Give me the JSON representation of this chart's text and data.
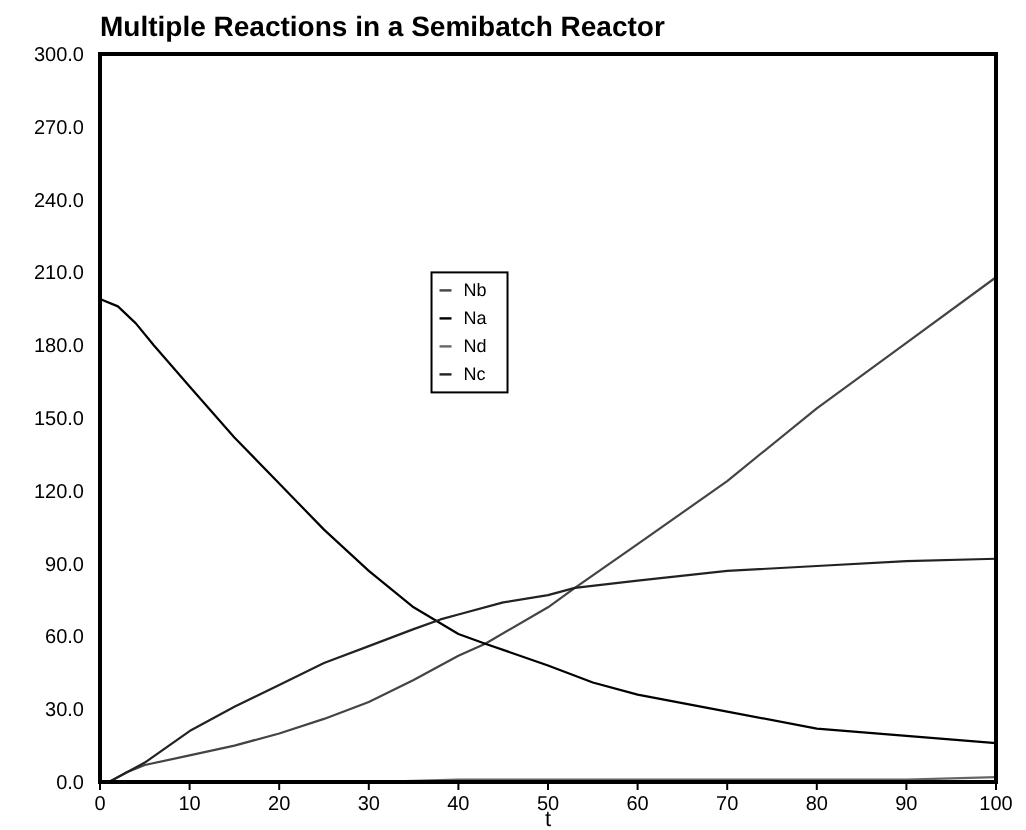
{
  "chart_data": {
    "type": "line",
    "title": "Multiple Reactions in a Semibatch Reactor",
    "xlabel": "t",
    "xlim": [
      0,
      100
    ],
    "xticks": [
      0,
      10,
      20,
      30,
      40,
      50,
      60,
      70,
      80,
      90,
      100
    ],
    "ylim": [
      0,
      300
    ],
    "yticks": [
      {
        "value": 0,
        "label": "0.0"
      },
      {
        "value": 30,
        "label": "30.0"
      },
      {
        "value": 60,
        "label": "60.0"
      },
      {
        "value": 90,
        "label": "90.0"
      },
      {
        "value": 120,
        "label": "120.0"
      },
      {
        "value": 150,
        "label": "150.0"
      },
      {
        "value": 180,
        "label": "180.0"
      },
      {
        "value": 210,
        "label": "210.0"
      },
      {
        "value": 240,
        "label": "240.0"
      },
      {
        "value": 270,
        "label": "270.0"
      },
      {
        "value": 300,
        "label": "300.0"
      }
    ],
    "grid": false,
    "legend": "center",
    "marker": "none",
    "line_style": "solid",
    "series": [
      {
        "name": "Nb",
        "color": "#444444",
        "x": [
          1,
          2,
          3,
          5,
          10,
          15,
          20,
          25,
          30,
          35,
          40,
          43,
          50,
          53,
          60,
          70,
          80,
          90,
          100
        ],
        "values": [
          0,
          2,
          4,
          7,
          11,
          15,
          20,
          26,
          33,
          42,
          52,
          57,
          72,
          80,
          98,
          124,
          154,
          181,
          208
        ]
      },
      {
        "name": "Na",
        "color": "#000000",
        "x": [
          0,
          2,
          4,
          6,
          10,
          15,
          20,
          25,
          30,
          35,
          40,
          43,
          50,
          55,
          60,
          70,
          80,
          90,
          100
        ],
        "values": [
          199,
          196,
          189,
          180,
          163,
          142,
          123,
          104,
          87,
          72,
          61,
          57,
          48,
          41,
          36,
          29,
          22,
          19,
          16
        ]
      },
      {
        "name": "Nd",
        "color": "#666666",
        "x": [
          0,
          10,
          20,
          30,
          40,
          50,
          60,
          70,
          80,
          90,
          100
        ],
        "values": [
          0,
          0,
          0,
          0,
          1,
          1,
          1,
          1,
          1,
          1,
          2
        ]
      },
      {
        "name": "Nc",
        "color": "#222222",
        "x": [
          1,
          3,
          5,
          10,
          15,
          20,
          25,
          30,
          35,
          38,
          40,
          45,
          50,
          53,
          60,
          70,
          80,
          90,
          100
        ],
        "values": [
          0,
          4,
          8,
          21,
          31,
          40,
          49,
          56,
          63,
          67,
          69,
          74,
          77,
          80,
          83,
          87,
          89,
          91,
          92
        ]
      }
    ]
  }
}
